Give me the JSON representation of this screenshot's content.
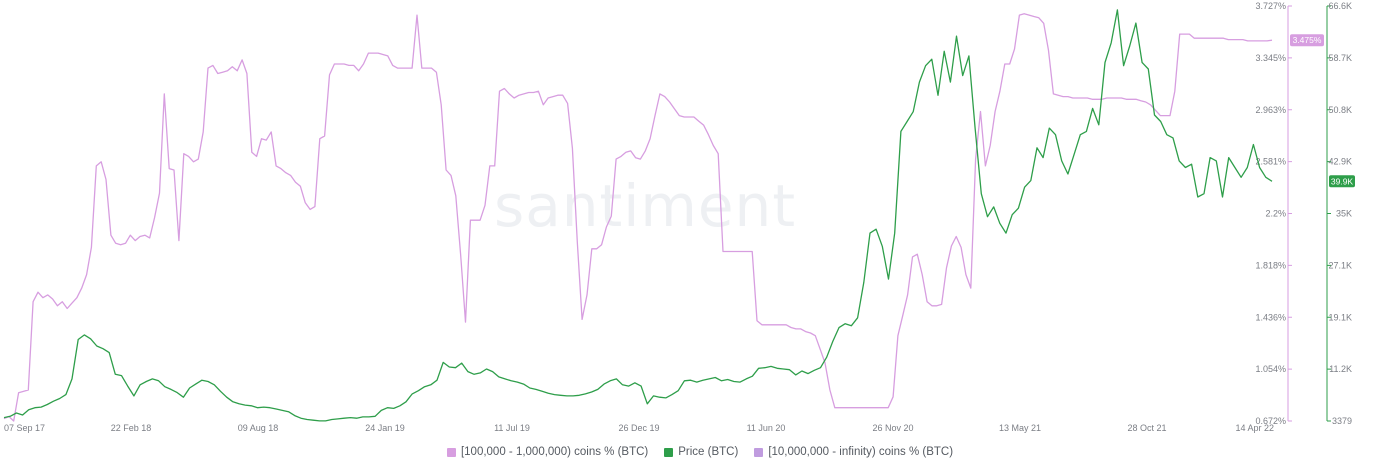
{
  "chart_data": {
    "type": "line",
    "watermark": "santiment",
    "x_ticks": [
      "07 Sep 17",
      "22 Feb 18",
      "09 Aug 18",
      "24 Jan 19",
      "11 Jul 19",
      "26 Dec 19",
      "11 Jun 20",
      "26 Nov 20",
      "13 May 21",
      "28 Oct 21",
      "14 Apr 22"
    ],
    "left_axis": {
      "ticks": [
        "0.672%",
        "1.054%",
        "1.436%",
        "1.818%",
        "2.2%",
        "2.581%",
        "2.963%",
        "3.345%",
        "3.727%"
      ],
      "range": [
        0.672,
        3.727
      ],
      "unit": "%"
    },
    "right_axis": {
      "ticks": [
        "3379",
        "11.2K",
        "19.1K",
        "27.1K",
        "35K",
        "42.9K",
        "50.8K",
        "58.7K",
        "66.6K"
      ],
      "range": [
        3379,
        66600
      ]
    },
    "series": [
      {
        "name": "[100,000  - 1,000,000) coins % (BTC)",
        "color": "#d79ee0",
        "axis": "left",
        "last_value_label": "3.475%",
        "values": [
          0.69,
          0.705,
          0.672,
          0.88,
          0.89,
          0.9,
          1.55,
          1.62,
          1.58,
          1.6,
          1.57,
          1.52,
          1.55,
          1.5,
          1.54,
          1.58,
          1.65,
          1.75,
          1.95,
          2.55,
          2.58,
          2.45,
          2.04,
          1.98,
          1.97,
          1.98,
          2.04,
          2.0,
          2.03,
          2.04,
          2.02,
          2.17,
          2.35,
          3.08,
          2.53,
          2.52,
          2.0,
          2.64,
          2.62,
          2.58,
          2.6,
          2.8,
          3.27,
          3.29,
          3.23,
          3.24,
          3.25,
          3.28,
          3.25,
          3.33,
          3.23,
          2.65,
          2.62,
          2.75,
          2.74,
          2.8,
          2.55,
          2.53,
          2.5,
          2.48,
          2.43,
          2.4,
          2.28,
          2.23,
          2.25,
          2.75,
          2.77,
          3.22,
          3.3,
          3.3,
          3.3,
          3.29,
          3.29,
          3.25,
          3.3,
          3.38,
          3.38,
          3.38,
          3.37,
          3.36,
          3.29,
          3.27,
          3.27,
          3.27,
          3.27,
          3.66,
          3.27,
          3.27,
          3.27,
          3.24,
          3.0,
          2.52,
          2.48,
          2.33,
          1.89,
          1.4,
          2.15,
          2.15,
          2.15,
          2.26,
          2.55,
          2.55,
          3.1,
          3.12,
          3.08,
          3.05,
          3.07,
          3.08,
          3.09,
          3.09,
          3.1,
          3.0,
          3.05,
          3.06,
          3.07,
          3.07,
          3.01,
          2.68,
          1.99,
          1.42,
          1.6,
          1.94,
          1.94,
          1.97,
          2.1,
          2.18,
          2.6,
          2.62,
          2.65,
          2.66,
          2.61,
          2.6,
          2.66,
          2.75,
          2.92,
          3.08,
          3.06,
          3.02,
          2.97,
          2.92,
          2.91,
          2.91,
          2.91,
          2.88,
          2.85,
          2.78,
          2.7,
          2.64,
          1.92,
          1.92,
          1.92,
          1.92,
          1.92,
          1.92,
          1.92,
          1.41,
          1.38,
          1.38,
          1.38,
          1.38,
          1.38,
          1.38,
          1.36,
          1.35,
          1.35,
          1.33,
          1.32,
          1.3,
          1.2,
          1.1,
          0.9,
          0.77,
          0.77,
          0.77,
          0.77,
          0.77,
          0.77,
          0.77,
          0.77,
          0.77,
          0.77,
          0.77,
          0.77,
          0.85,
          1.3,
          1.45,
          1.6,
          1.88,
          1.9,
          1.75,
          1.55,
          1.52,
          1.52,
          1.53,
          1.8,
          1.96,
          2.03,
          1.95,
          1.75,
          1.65,
          2.6,
          2.95,
          2.55,
          2.7,
          2.95,
          3.1,
          3.3,
          3.3,
          3.41,
          3.66,
          3.67,
          3.66,
          3.65,
          3.64,
          3.6,
          3.4,
          3.08,
          3.07,
          3.06,
          3.06,
          3.05,
          3.05,
          3.05,
          3.05,
          3.04,
          3.04,
          3.04,
          3.05,
          3.05,
          3.05,
          3.05,
          3.04,
          3.04,
          3.04,
          3.03,
          3.02,
          3.0,
          2.96,
          2.92,
          2.92,
          2.92,
          3.1,
          3.52,
          3.52,
          3.52,
          3.49,
          3.49,
          3.49,
          3.49,
          3.49,
          3.49,
          3.49,
          3.48,
          3.48,
          3.48,
          3.48,
          3.47,
          3.47,
          3.47,
          3.47,
          3.47,
          3.475
        ]
      },
      {
        "name": "Price (BTC)",
        "color": "#2e9e4a",
        "axis": "right",
        "last_value_label": "39.9K",
        "values": [
          3900,
          4100,
          4600,
          4300,
          5100,
          5400,
          5500,
          5900,
          6400,
          6800,
          7400,
          9800,
          15800,
          16500,
          15900,
          14800,
          14400,
          13800,
          10500,
          10300,
          8700,
          7200,
          8900,
          9400,
          9800,
          9500,
          8600,
          8200,
          7700,
          7000,
          8400,
          9000,
          9600,
          9400,
          8900,
          7900,
          7000,
          6300,
          6000,
          5800,
          5700,
          5400,
          5500,
          5400,
          5200,
          5000,
          4800,
          4200,
          3800,
          3600,
          3500,
          3400,
          3400,
          3600,
          3700,
          3800,
          3900,
          3800,
          4000,
          4000,
          4100,
          5000,
          5400,
          5300,
          5700,
          6300,
          7500,
          8000,
          8600,
          8900,
          9600,
          12300,
          11600,
          11500,
          12200,
          10900,
          10500,
          10700,
          11300,
          10900,
          10100,
          9800,
          9500,
          9300,
          9000,
          8400,
          8200,
          7900,
          7600,
          7400,
          7300,
          7200,
          7200,
          7300,
          7500,
          7800,
          8200,
          9000,
          9500,
          9800,
          8900,
          8700,
          9200,
          8700,
          6000,
          7200,
          7000,
          6900,
          7400,
          8000,
          9500,
          9600,
          9300,
          9600,
          9800,
          10000,
          9500,
          9700,
          9400,
          9300,
          9800,
          10200,
          11400,
          11500,
          11700,
          11400,
          11300,
          11200,
          10400,
          11000,
          10600,
          11100,
          11500,
          13100,
          15500,
          17600,
          18200,
          17900,
          19100,
          24500,
          32000,
          32600,
          30000,
          25000,
          32000,
          47500,
          49000,
          50500,
          55000,
          57500,
          58500,
          53000,
          59700,
          55000,
          62000,
          56000,
          59000,
          48000,
          38000,
          34500,
          36000,
          33500,
          32000,
          34800,
          35800,
          39000,
          40000,
          45000,
          43500,
          48000,
          47000,
          43000,
          41000,
          44000,
          47000,
          47500,
          51000,
          48500,
          58000,
          61000,
          66000,
          57500,
          60500,
          64000,
          58000,
          57000,
          50000,
          49000,
          47000,
          46500,
          43000,
          42000,
          42500,
          37500,
          38000,
          43500,
          43000,
          37500,
          43500,
          42000,
          40500,
          42000,
          45500,
          42000,
          40500,
          39900
        ]
      },
      {
        "name": "[10,000,000 - infinity) coins % (BTC)",
        "color": "#c09cdf",
        "axis": "left",
        "values": []
      }
    ],
    "grid": false,
    "legend": "bottom-center"
  }
}
